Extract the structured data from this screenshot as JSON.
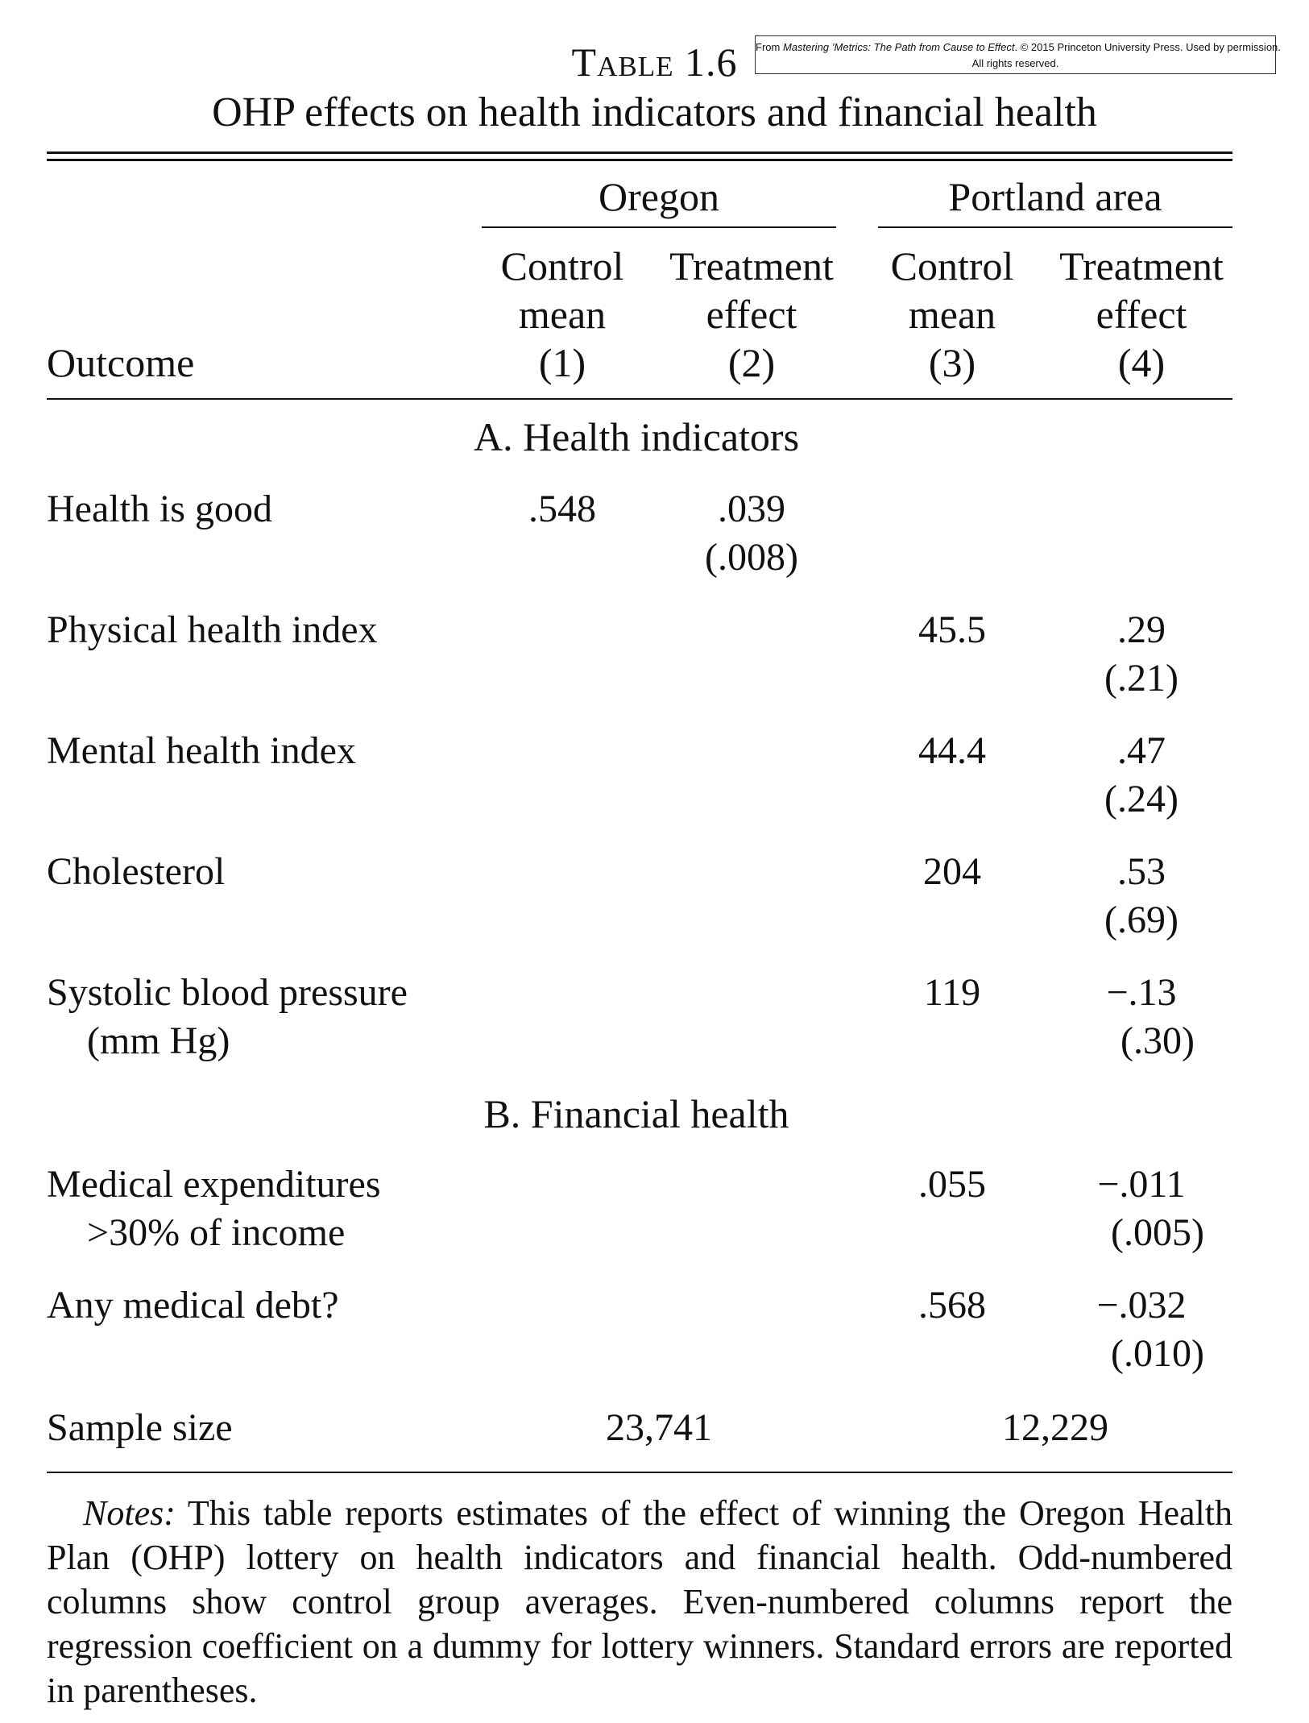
{
  "credit": {
    "prefix": "From ",
    "book": "Mastering ’Metrics: The Path from Cause to Effect",
    "suffix": ". © 2015 Princeton University Press. Used by permission.",
    "line2": "All rights reserved."
  },
  "table": {
    "label": "Table 1.6",
    "title": "OHP effects on health indicators and financial health"
  },
  "groups": {
    "oregon": "Oregon",
    "portland": "Portland area"
  },
  "columns": [
    {
      "line1": "Control",
      "line2": "mean",
      "num": "(1)"
    },
    {
      "line1": "Treatment",
      "line2": "effect",
      "num": "(2)"
    },
    {
      "line1": "Control",
      "line2": "mean",
      "num": "(3)"
    },
    {
      "line1": "Treatment",
      "line2": "effect",
      "num": "(4)"
    }
  ],
  "outcome_header": "Outcome",
  "panel_a": "A. Health indicators",
  "panel_b": "B. Financial health",
  "rows": [
    {
      "label": "Health is good",
      "c1": ".548",
      "c2": ".039",
      "c2_se": "(.008)"
    },
    {
      "label": "Physical health index",
      "c3": "45.5",
      "c4": ".29",
      "c4_se": "(.21)"
    },
    {
      "label": "Mental health index",
      "c3": "44.4",
      "c4": ".47",
      "c4_se": "(.24)"
    },
    {
      "label": "Cholesterol",
      "c3": "204",
      "c4": ".53",
      "c4_se": "(.69)"
    },
    {
      "label": "Systolic blood pressure",
      "label2": "(mm Hg)",
      "c3": "119",
      "c4": "−.13",
      "c4_se": "(.30)"
    },
    {
      "label": "Medical expenditures",
      "label2": ">30% of income",
      "c3": ".055",
      "c4": "−.011",
      "c4_se": "(.005)"
    },
    {
      "label": "Any medical debt?",
      "c3": ".568",
      "c4": "−.032",
      "c4_se": "(.010)"
    }
  ],
  "sample": {
    "label": "Sample size",
    "oregon": "23,741",
    "portland": "12,229"
  },
  "notes": {
    "lead": "Notes:",
    "text": " This table reports estimates of the effect of winning the Oregon Health Plan (OHP) lottery on health indicators and financial health. Odd-numbered columns show control group averages. Even-numbered columns report the regression coefficient on a dummy for lottery winners. Standard errors are reported in parentheses."
  }
}
